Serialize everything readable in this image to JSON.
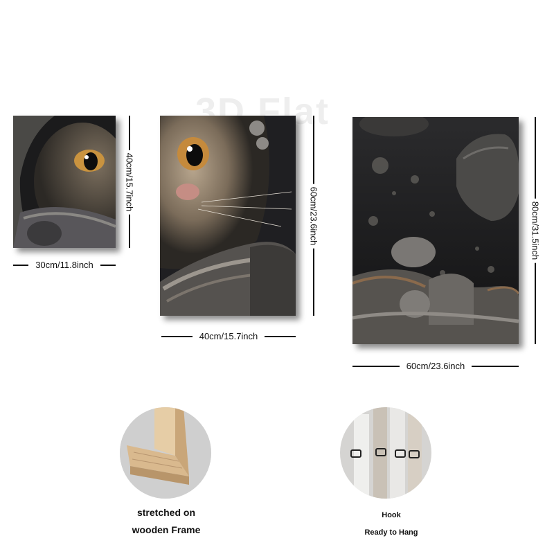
{
  "watermark": "3D Flat",
  "panels": [
    {
      "id": "small",
      "width_label": "30cm/11.8inch",
      "height_label": "40cm/15.7inch"
    },
    {
      "id": "medium",
      "width_label": "40cm/15.7inch",
      "height_label": "60cm/23.6inch"
    },
    {
      "id": "large",
      "width_label": "60cm/23.6inch",
      "height_label": "80cm/31.5inch"
    }
  ],
  "features": {
    "frame": {
      "line1": "stretched on",
      "line2": "wooden Frame"
    },
    "hook": {
      "line1": "Hook",
      "line2": "Ready to Hang"
    }
  },
  "colors": {
    "space_dark": "#1e1e20",
    "fur": "#8a7a68",
    "helmet": "#6f6d6a",
    "wood": "#d9b98e",
    "dimension_lines": "#111111"
  }
}
